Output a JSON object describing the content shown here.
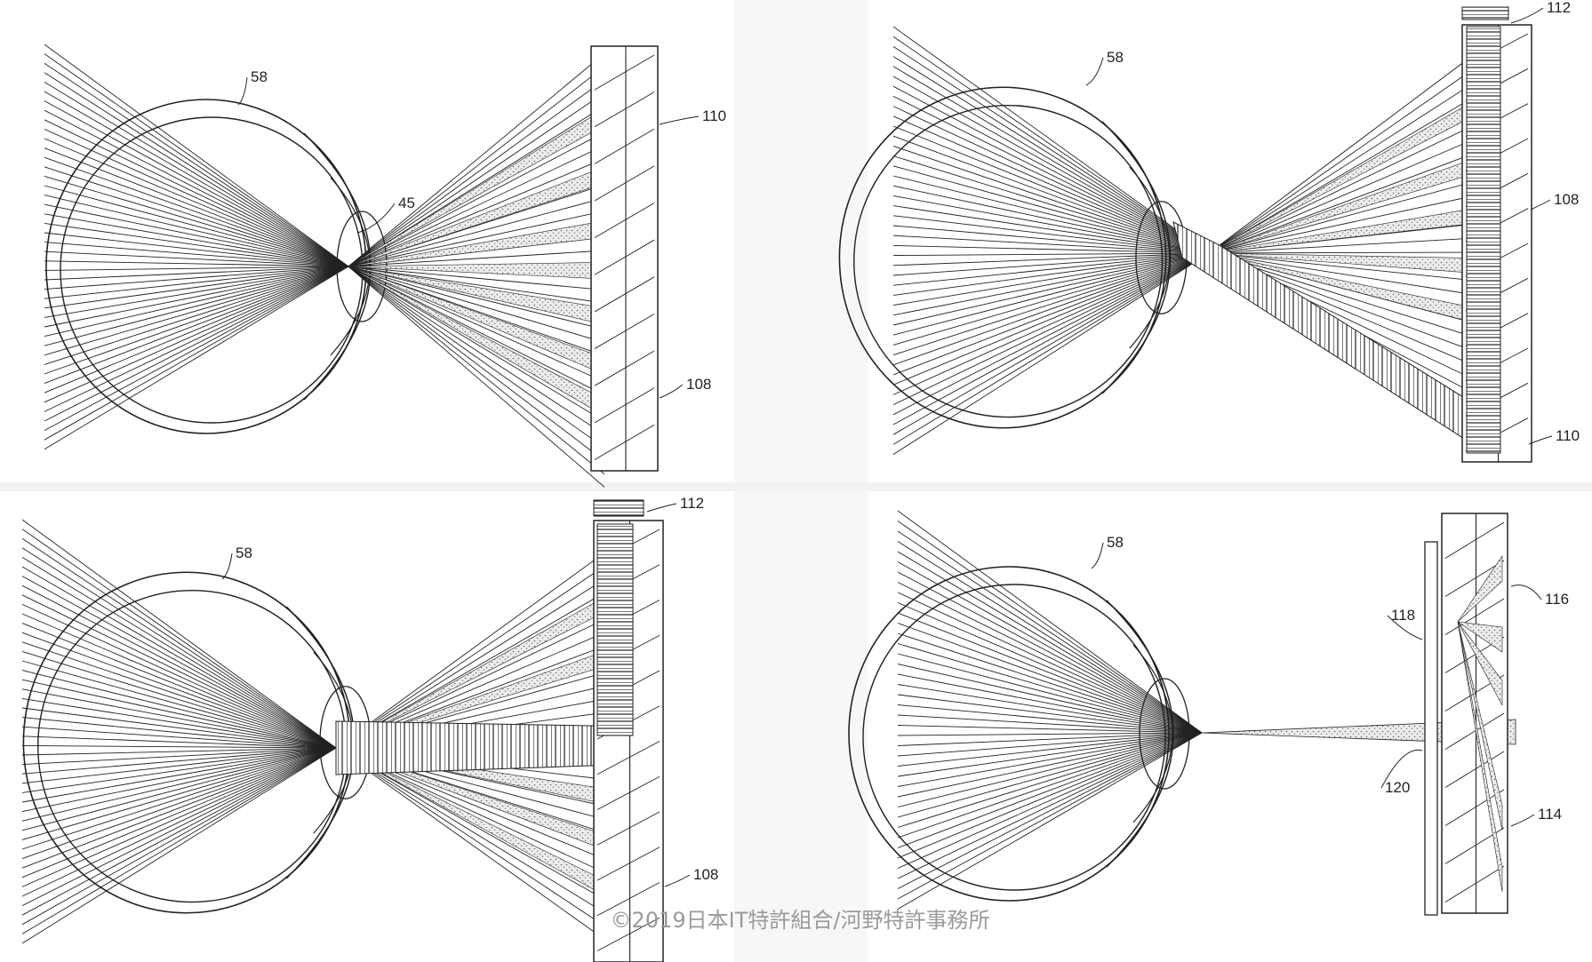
{
  "panels": [
    {
      "id": "tl",
      "eye_label": "58",
      "lens_label": "45",
      "emitter_label": "110",
      "waveguide_label": "108",
      "top_label": "108"
    },
    {
      "id": "tr",
      "eye_label": "58",
      "top_label": "112",
      "waveguide_label": "108",
      "emitter_label": "110"
    },
    {
      "id": "bl",
      "eye_label": "58",
      "top_label": "112",
      "waveguide_label": "108"
    },
    {
      "id": "br",
      "eye_label": "58",
      "emitter_label": "116",
      "side_label": "118",
      "beam_label": "120",
      "waveguide_label": "114"
    }
  ],
  "copyright": "©2019日本IT特許組合/河野特許事務所",
  "colors": {
    "line": "#222222",
    "stipple": "#b8b8b8",
    "watermark": "#9a9a9a"
  }
}
